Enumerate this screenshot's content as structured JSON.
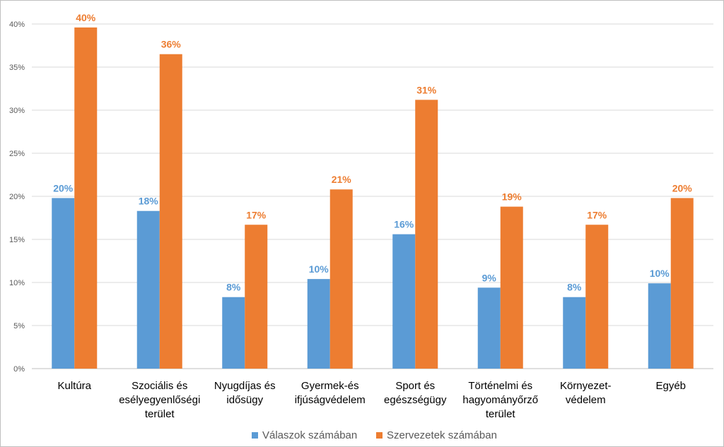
{
  "chart_data": {
    "type": "bar",
    "title": "",
    "xlabel": "",
    "ylabel": "",
    "ylim": [
      0,
      40
    ],
    "yticks": [
      "0%",
      "5%",
      "10%",
      "15%",
      "20%",
      "25%",
      "30%",
      "35%",
      "40%"
    ],
    "grid": true,
    "legend_position": "bottom",
    "categories": [
      [
        "Kultúra"
      ],
      [
        "Szociális és",
        "esélyegyenlőségi",
        "terület"
      ],
      [
        "Nyugdíjas és",
        "idősügy"
      ],
      [
        "Gyermek-és",
        "ifjúságvédelem"
      ],
      [
        "Sport és",
        "egészségügy"
      ],
      [
        "Történelmi és",
        "hagyományőrző",
        "terület"
      ],
      [
        "Környezet-",
        "védelem"
      ],
      [
        "Egyéb"
      ]
    ],
    "series": [
      {
        "name": "Válaszok számában",
        "color": "#5b9bd5",
        "label_color": "#5b9bd5",
        "values": [
          19.8,
          18.3,
          8.3,
          10.4,
          15.6,
          9.4,
          8.3,
          9.9
        ],
        "labels": [
          "20%",
          "18%",
          "8%",
          "10%",
          "16%",
          "9%",
          "8%",
          "10%"
        ]
      },
      {
        "name": "Szervezetek számában",
        "color": "#ed7d31",
        "label_color": "#ed7d31",
        "values": [
          39.6,
          36.5,
          16.7,
          20.8,
          31.2,
          18.8,
          16.7,
          19.8
        ],
        "labels": [
          "40%",
          "36%",
          "17%",
          "21%",
          "31%",
          "19%",
          "17%",
          "20%"
        ]
      }
    ]
  }
}
